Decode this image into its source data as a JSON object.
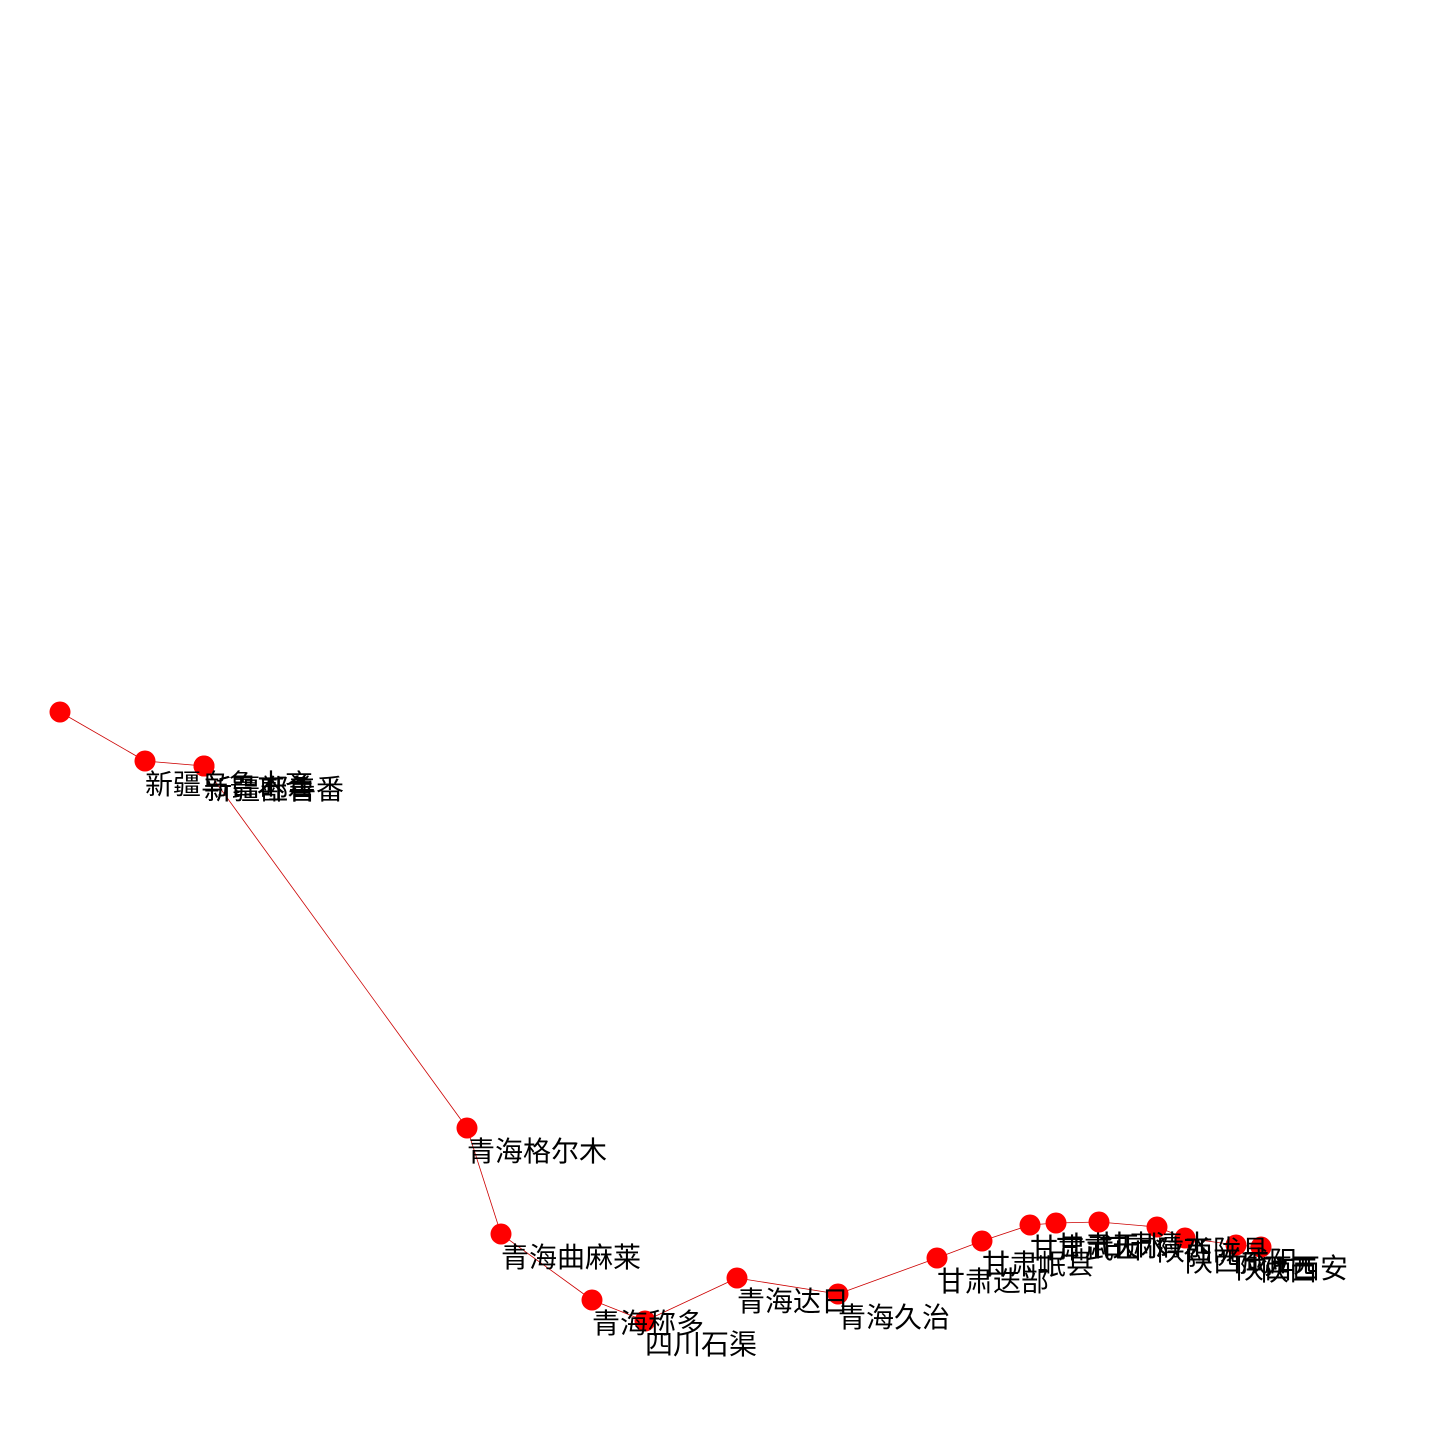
{
  "graph": {
    "node_color": "#ff0000",
    "edge_color": "#cc0000",
    "label_color": "#000000",
    "nodes": [
      {
        "id": "n1",
        "label": ""
      },
      {
        "id": "n2",
        "label": "新疆乌鲁木齐"
      },
      {
        "id": "n3",
        "label": "新疆吐鲁番"
      },
      {
        "id": "n4",
        "label": "新疆鄯善"
      },
      {
        "id": "n5",
        "label": "青海格尔木"
      },
      {
        "id": "n6",
        "label": "青海曲麻莱"
      },
      {
        "id": "n7",
        "label": "青海称多"
      },
      {
        "id": "n8",
        "label": "四川石渠"
      },
      {
        "id": "n9",
        "label": "青海达日"
      },
      {
        "id": "n10",
        "label": "青海久治"
      },
      {
        "id": "n11",
        "label": "甘肃迭部"
      },
      {
        "id": "n12",
        "label": "甘肃岷县"
      },
      {
        "id": "n13",
        "label": "甘肃武山"
      },
      {
        "id": "n14",
        "label": "甘肃天水"
      },
      {
        "id": "n15",
        "label": "甘肃清水"
      },
      {
        "id": "n16",
        "label": "陕西陇县"
      },
      {
        "id": "n17",
        "label": "陕西咸阳"
      },
      {
        "id": "n18",
        "label": "陕西西安"
      },
      {
        "id": "n19",
        "label": "陕西"
      }
    ],
    "edges": [
      [
        "n1",
        "n2"
      ],
      [
        "n2",
        "n3"
      ],
      [
        "n3",
        "n4"
      ],
      [
        "n4",
        "n5"
      ],
      [
        "n5",
        "n6"
      ],
      [
        "n6",
        "n7"
      ],
      [
        "n7",
        "n8"
      ],
      [
        "n8",
        "n9"
      ],
      [
        "n9",
        "n10"
      ],
      [
        "n10",
        "n11"
      ],
      [
        "n11",
        "n12"
      ],
      [
        "n12",
        "n13"
      ],
      [
        "n13",
        "n14"
      ],
      [
        "n14",
        "n15"
      ],
      [
        "n15",
        "n16"
      ],
      [
        "n16",
        "n17"
      ],
      [
        "n17",
        "n18"
      ],
      [
        "n18",
        "n19"
      ]
    ]
  }
}
